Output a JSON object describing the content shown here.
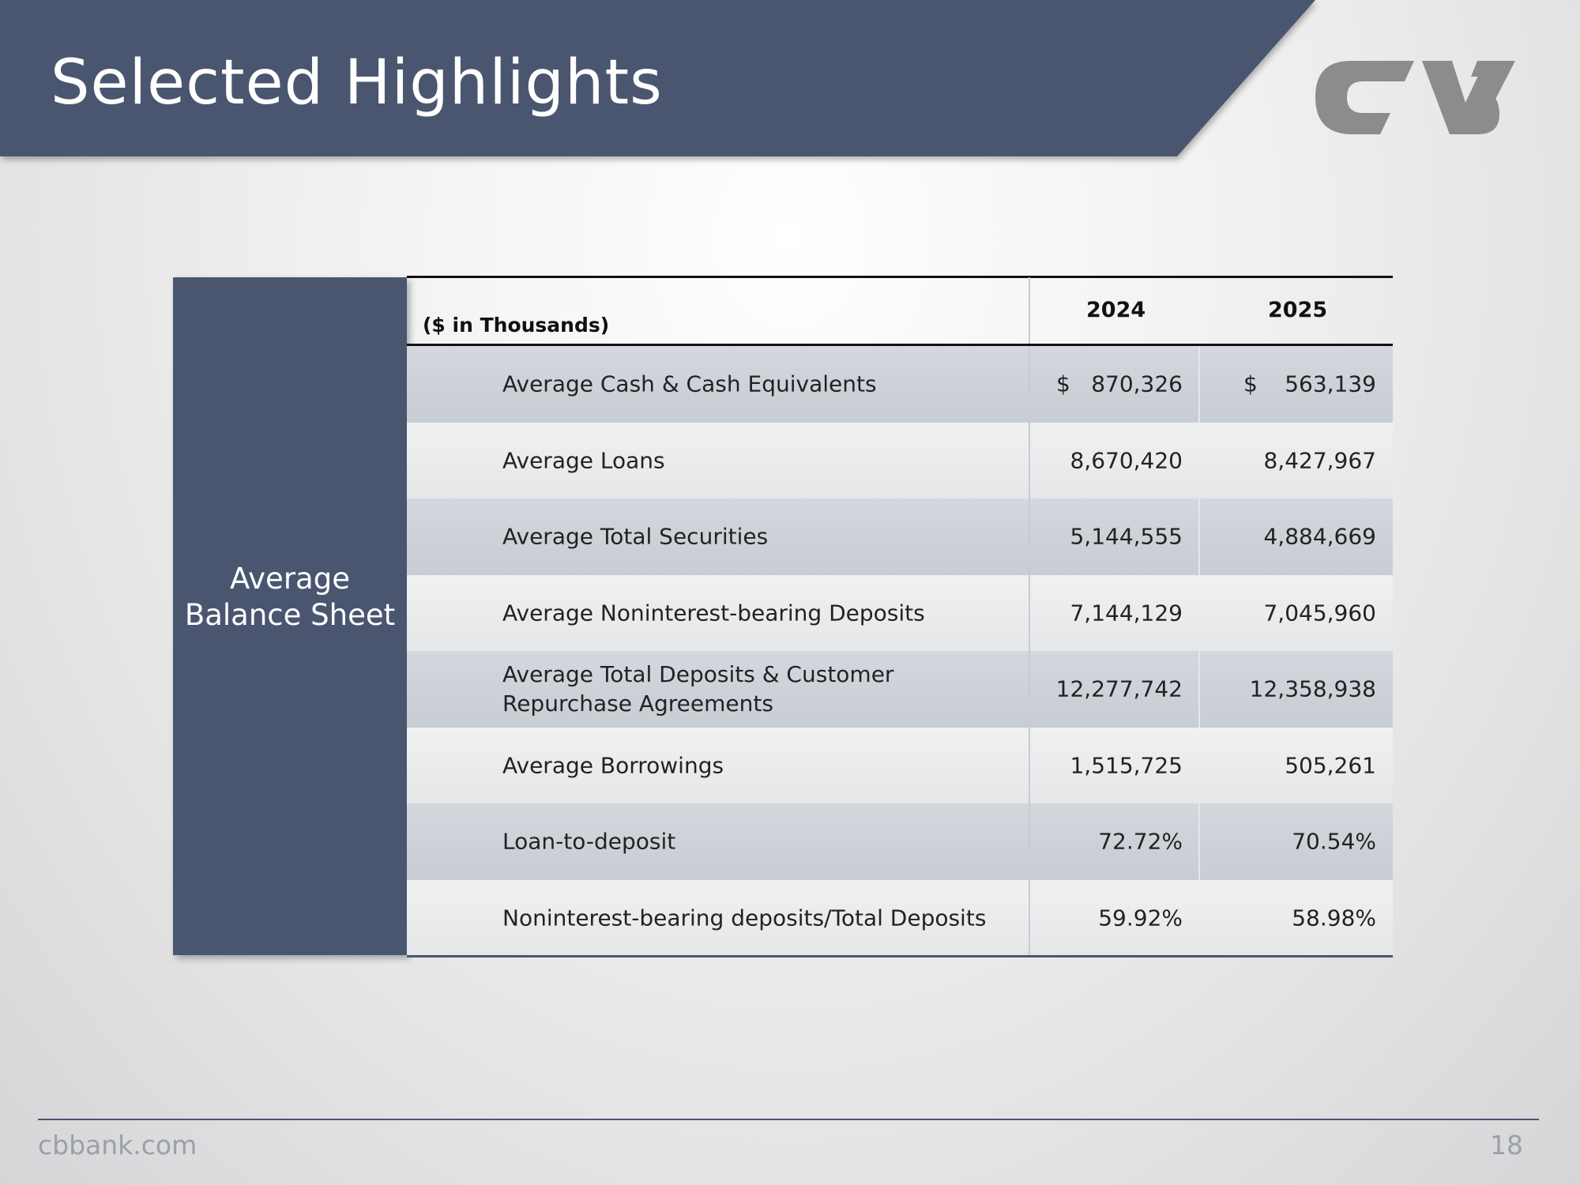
{
  "header": {
    "title": "Selected Highlights"
  },
  "table": {
    "side_label": "Average Balance Sheet",
    "columns": [
      "($ in Thousands)",
      "2024",
      "2025"
    ],
    "rows": [
      {
        "label": "Average Cash & Cash Equivalents",
        "currency": "$",
        "values": [
          "870,326",
          "563,139"
        ]
      },
      {
        "label": "Average Loans",
        "values": [
          "8,670,420",
          "8,427,967"
        ]
      },
      {
        "label": "Average Total Securities",
        "values": [
          "5,144,555",
          "4,884,669"
        ]
      },
      {
        "label": "Average Noninterest-bearing Deposits",
        "values": [
          "7,144,129",
          "7,045,960"
        ]
      },
      {
        "label": "Average Total Deposits & Customer Repurchase Agreements",
        "values": [
          "12,277,742",
          "12,358,938"
        ]
      },
      {
        "label": "Average Borrowings",
        "values": [
          "1,515,725",
          "505,261"
        ]
      },
      {
        "label": "Loan-to-deposit",
        "values": [
          "72.72%",
          "70.54%"
        ]
      },
      {
        "label": "Noninterest-bearing deposits/Total Deposits",
        "values": [
          "59.92%",
          "58.98%"
        ]
      }
    ]
  },
  "footer": {
    "site": "cbbank.com",
    "page": "18"
  }
}
